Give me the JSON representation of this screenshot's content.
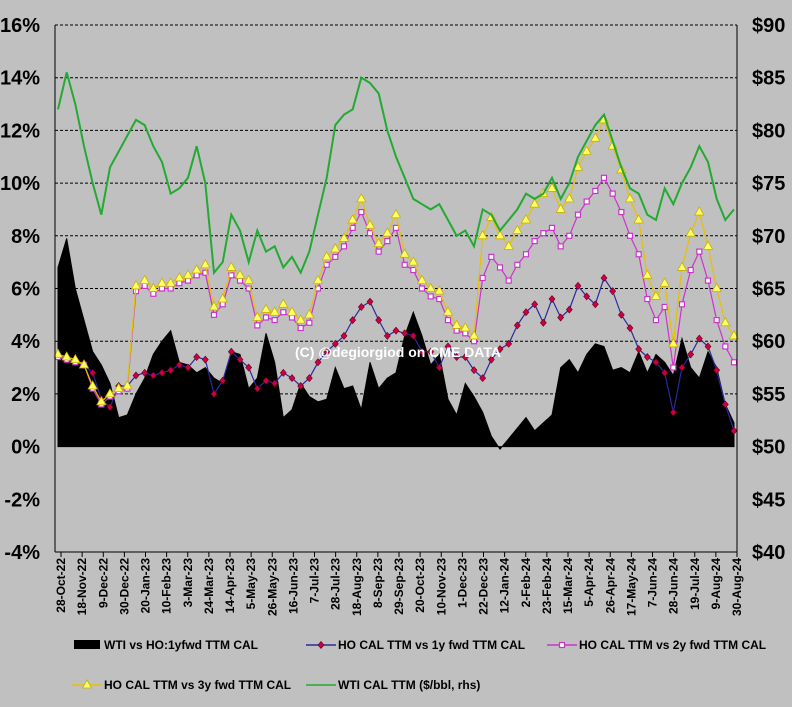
{
  "chart_data": {
    "type": "line",
    "title": "",
    "watermark": "(C) @degiorgiod on CME DATA",
    "left_axis": {
      "ylim": [
        -4,
        16
      ],
      "ticks": [
        -4,
        -2,
        0,
        2,
        4,
        6,
        8,
        10,
        12,
        14,
        16
      ],
      "tick_labels": [
        "-4%",
        "-2%",
        "0%",
        "2%",
        "4%",
        "6%",
        "8%",
        "10%",
        "12%",
        "14%",
        "16%"
      ]
    },
    "right_axis": {
      "ylim": [
        40,
        90
      ],
      "tick_labels": [
        "$40",
        "$45",
        "$50",
        "$55",
        "$60",
        "$65",
        "$70",
        "$75",
        "$80",
        "$85",
        "$90"
      ]
    },
    "x_tick_labels": [
      "28-Oct-22",
      "18-Nov-22",
      "9-Dec-22",
      "30-Dec-22",
      "20-Jan-23",
      "10-Feb-23",
      "3-Mar-23",
      "24-Mar-23",
      "14-Apr-23",
      "5-May-23",
      "26-May-23",
      "16-Jun-23",
      "7-Jul-23",
      "28-Jul-23",
      "18-Aug-23",
      "8-Sep-23",
      "29-Sep-23",
      "20-Oct-23",
      "10-Nov-23",
      "1-Dec-23",
      "22-Dec-23",
      "12-Jan-24",
      "2-Feb-24",
      "23-Feb-24",
      "15-Mar-24",
      "5-Apr-24",
      "26-Apr-24",
      "17-May-24",
      "7-Jun-24",
      "28-Jun-24",
      "19-Jul-24",
      "9-Aug-24",
      "30-Aug-24"
    ],
    "series": [
      {
        "name": "WTI vs HO:1yfwd TTM CAL",
        "type": "area",
        "axis": "left",
        "color": "#000000",
        "values": [
          6.8,
          7.9,
          6.0,
          4.8,
          3.6,
          3.1,
          2.4,
          1.1,
          1.2,
          2.0,
          2.6,
          3.5,
          4.0,
          4.4,
          3.2,
          3.1,
          2.8,
          3.0,
          2.6,
          2.4,
          3.6,
          3.5,
          2.2,
          2.6,
          4.3,
          3.2,
          1.1,
          1.4,
          2.4,
          1.9,
          1.7,
          1.8,
          3.0,
          2.2,
          2.3,
          1.4,
          3.2,
          2.2,
          2.6,
          2.8,
          4.2,
          5.1,
          4.2,
          3.1,
          3.5,
          1.8,
          1.2,
          2.4,
          1.9,
          1.3,
          0.4,
          -0.1,
          0.3,
          0.7,
          1.1,
          0.6,
          0.9,
          1.2,
          3.0,
          3.3,
          2.8,
          3.5,
          3.9,
          3.8,
          2.9,
          3.0,
          2.8,
          3.6,
          2.8,
          3.5,
          3.2,
          2.7,
          4.1,
          3.0,
          2.6,
          3.6,
          3.0,
          1.6,
          0.9
        ]
      },
      {
        "name": "HO CAL TTM vs 1y fwd TTM CAL",
        "type": "line",
        "axis": "left",
        "color": "#2a2aa0",
        "marker": "diamond",
        "marker_color": "#d00040",
        "values": [
          3.4,
          3.3,
          3.2,
          3.1,
          2.8,
          1.8,
          1.5,
          2.3,
          2.3,
          2.7,
          2.8,
          2.7,
          2.8,
          2.9,
          3.1,
          3.0,
          3.4,
          3.3,
          2.0,
          2.5,
          3.6,
          3.3,
          3.0,
          2.2,
          2.5,
          2.4,
          2.8,
          2.6,
          2.3,
          2.6,
          3.2,
          3.6,
          3.9,
          4.2,
          4.8,
          5.3,
          5.5,
          4.8,
          4.2,
          4.4,
          4.3,
          4.2,
          3.6,
          3.6,
          3.0,
          3.8,
          3.4,
          3.4,
          2.9,
          2.6,
          3.3,
          3.7,
          3.9,
          4.6,
          5.1,
          5.4,
          4.7,
          5.6,
          4.9,
          5.2,
          6.1,
          5.7,
          5.4,
          6.4,
          5.9,
          5.0,
          4.5,
          3.7,
          3.4,
          3.2,
          2.8,
          1.3,
          3.0,
          3.5,
          4.1,
          3.8,
          2.9,
          1.6,
          0.6
        ]
      },
      {
        "name": "HO CAL TTM vs 2y fwd TTM CAL",
        "type": "line",
        "axis": "left",
        "color": "#cc33cc",
        "marker": "square",
        "marker_color": "#ffffff",
        "values": [
          3.4,
          3.3,
          3.2,
          3.1,
          2.2,
          1.6,
          1.9,
          2.1,
          2.2,
          5.9,
          6.1,
          5.8,
          6.0,
          6.0,
          6.2,
          6.3,
          6.5,
          6.6,
          5.0,
          5.4,
          6.5,
          6.3,
          6.0,
          4.6,
          4.9,
          4.8,
          5.1,
          4.9,
          4.5,
          4.7,
          6.0,
          6.9,
          7.2,
          7.6,
          8.3,
          8.9,
          8.1,
          7.4,
          7.8,
          8.3,
          6.9,
          6.7,
          6.0,
          5.7,
          5.6,
          4.8,
          4.4,
          4.3,
          4.0,
          6.4,
          7.2,
          6.8,
          6.3,
          6.9,
          7.3,
          7.8,
          8.1,
          8.3,
          7.6,
          8.0,
          8.8,
          9.3,
          9.7,
          10.2,
          9.6,
          8.9,
          8.0,
          7.3,
          5.6,
          4.8,
          5.3,
          3.0,
          5.4,
          6.7,
          7.4,
          6.3,
          4.8,
          3.8,
          3.2
        ]
      },
      {
        "name": "HO CAL TTM vs 3y fwd TTM CAL",
        "type": "line",
        "axis": "left",
        "color": "#e8c000",
        "marker": "triangle",
        "marker_color": "#ffff66",
        "values": [
          3.5,
          3.4,
          3.3,
          3.1,
          2.3,
          1.7,
          2.0,
          2.2,
          2.3,
          6.1,
          6.3,
          6.0,
          6.2,
          6.2,
          6.4,
          6.5,
          6.7,
          6.9,
          5.3,
          5.6,
          6.8,
          6.5,
          6.3,
          4.9,
          5.2,
          5.1,
          5.4,
          5.1,
          4.8,
          5.0,
          6.3,
          7.2,
          7.5,
          7.9,
          8.6,
          9.4,
          8.4,
          7.7,
          8.1,
          8.8,
          7.3,
          7.0,
          6.3,
          6.0,
          5.9,
          5.1,
          4.6,
          4.5,
          4.2,
          8.0,
          8.7,
          8.0,
          7.6,
          8.2,
          8.6,
          9.2,
          9.6,
          9.8,
          9.0,
          9.4,
          10.6,
          11.2,
          11.7,
          12.4,
          11.4,
          10.5,
          9.4,
          8.6,
          6.5,
          5.7,
          6.2,
          3.9,
          6.8,
          8.1,
          8.9,
          7.6,
          6.0,
          4.7,
          4.2
        ]
      },
      {
        "name": "WTI CAL TTM ($/bbl, rhs)",
        "type": "line",
        "axis": "right",
        "color": "#22aa33",
        "values": [
          82.0,
          85.5,
          82.5,
          78.5,
          75.0,
          72.0,
          76.5,
          78.0,
          79.5,
          81.0,
          80.5,
          78.5,
          77.0,
          74.0,
          74.5,
          75.5,
          78.5,
          75.0,
          66.5,
          67.5,
          72.0,
          70.5,
          67.5,
          70.5,
          68.5,
          69.0,
          67.0,
          68.0,
          66.5,
          68.5,
          72.0,
          75.5,
          80.5,
          81.5,
          82.0,
          85.0,
          84.5,
          83.5,
          80.0,
          77.5,
          75.5,
          73.5,
          73.0,
          72.5,
          73.0,
          71.5,
          70.0,
          70.5,
          69.0,
          72.5,
          72.0,
          70.5,
          71.5,
          72.5,
          74.0,
          73.5,
          74.0,
          75.5,
          73.5,
          75.0,
          77.5,
          79.0,
          80.5,
          81.5,
          79.0,
          76.5,
          74.5,
          74.0,
          72.0,
          71.5,
          74.5,
          73.0,
          75.0,
          76.5,
          78.5,
          77.0,
          73.5,
          71.5,
          72.5
        ]
      }
    ]
  }
}
